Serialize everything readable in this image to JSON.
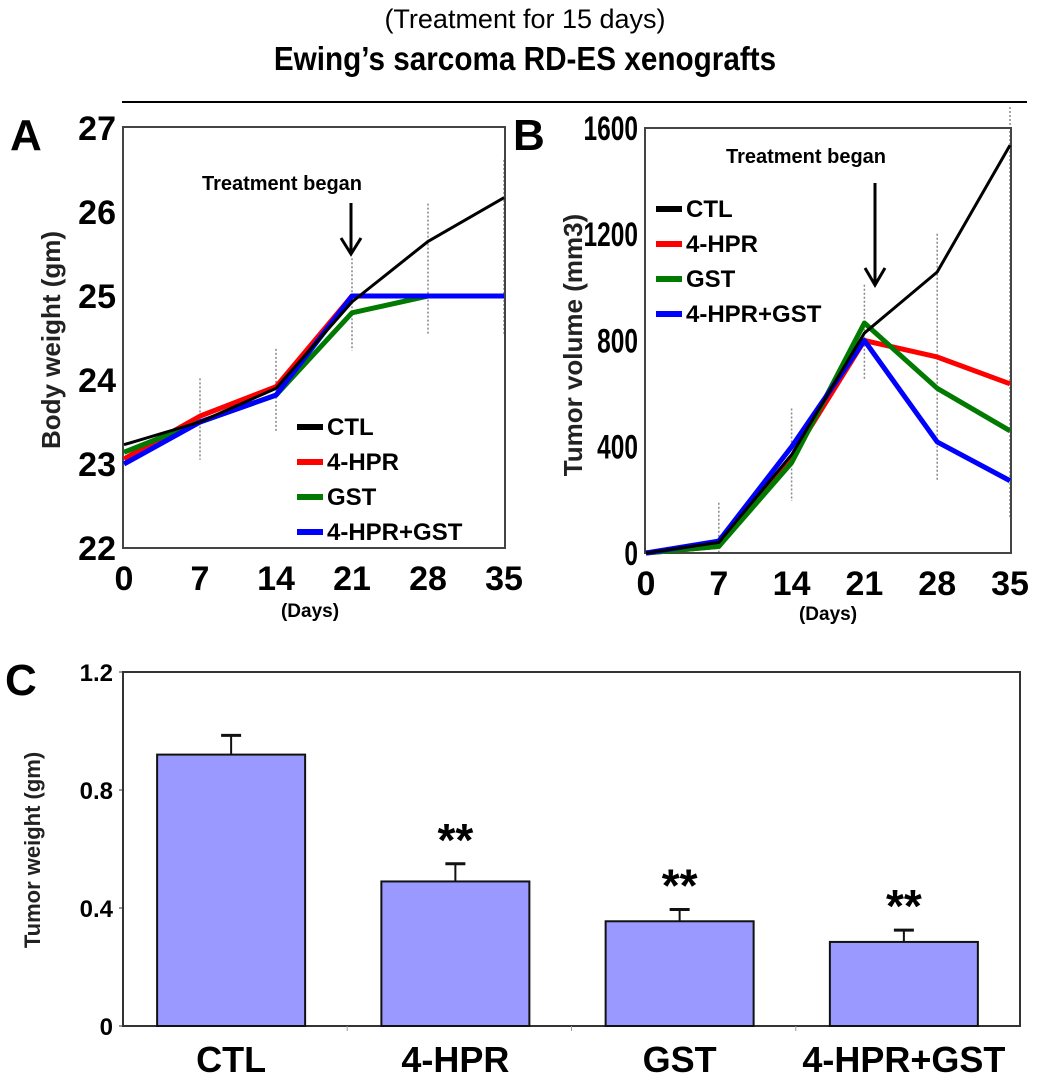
{
  "header": {
    "subtitle": "(Treatment for 15 days)",
    "title": "Ewing’s sarcoma RD-ES xenografts"
  },
  "colors": {
    "CTL": "#000000",
    "4-HPR": "#ff0000",
    "GST": "#007a00",
    "4-HPR+GST": "#0000ff",
    "bar": "#9999ff"
  },
  "chart_data": [
    {
      "panel": "A",
      "type": "line",
      "title": "",
      "xlabel": "(Days)",
      "ylabel": "Body weight (gm)",
      "x": [
        0,
        7,
        14,
        21,
        28,
        35
      ],
      "xticks": [
        "0",
        "7",
        "14",
        "21",
        "28",
        "35"
      ],
      "yticks": [
        "22",
        "23",
        "24",
        "25",
        "26",
        "27"
      ],
      "ylim": [
        22,
        27
      ],
      "xlim": [
        0,
        35
      ],
      "legend_position": "bottom-right",
      "annotation": {
        "text": "Treatment began",
        "x": 21
      },
      "series": [
        {
          "name": "CTL",
          "values": [
            23.23,
            23.5,
            23.9,
            24.93,
            25.65,
            26.17
          ]
        },
        {
          "name": "4-HPR",
          "values": [
            23.06,
            23.57,
            23.92,
            25.0,
            25.0,
            25.0
          ]
        },
        {
          "name": "GST",
          "values": [
            23.14,
            23.5,
            23.82,
            24.8,
            25.0,
            25.0
          ]
        },
        {
          "name": "4-HPR+GST",
          "values": [
            23.0,
            23.5,
            23.82,
            25.0,
            25.0,
            25.0
          ]
        }
      ]
    },
    {
      "panel": "B",
      "type": "line",
      "title": "",
      "xlabel": "(Days)",
      "ylabel": "Tumor volume (mm3)",
      "x": [
        0,
        7,
        14,
        21,
        28,
        35
      ],
      "xticks": [
        "0",
        "7",
        "14",
        "21",
        "28",
        "35"
      ],
      "yticks": [
        "0",
        "400",
        "800",
        "1200",
        "1600"
      ],
      "ylim": [
        0,
        1600
      ],
      "xlim": [
        0,
        35
      ],
      "legend_position": "top-left",
      "annotation": {
        "text": "Treatment began",
        "x": 21
      },
      "series": [
        {
          "name": "CTL",
          "values": [
            0,
            40,
            370,
            828,
            1058,
            1535
          ]
        },
        {
          "name": "4-HPR",
          "values": [
            0,
            25,
            360,
            800,
            738,
            637
          ]
        },
        {
          "name": "GST",
          "values": [
            0,
            25,
            340,
            866,
            620,
            460
          ]
        },
        {
          "name": "4-HPR+GST",
          "values": [
            0,
            45,
            400,
            800,
            418,
            272
          ]
        }
      ]
    },
    {
      "panel": "C",
      "type": "bar",
      "title": "",
      "xlabel": "",
      "ylabel": "Tumor weight (gm)",
      "categories": [
        "CTL",
        "4-HPR",
        "GST",
        "4-HPR+GST"
      ],
      "values": [
        0.92,
        0.49,
        0.355,
        0.285
      ],
      "errors": [
        0.065,
        0.06,
        0.04,
        0.04
      ],
      "significance": [
        "",
        "**",
        "**",
        "**"
      ],
      "yticks": [
        "0",
        "0.4",
        "0.8",
        "1.2"
      ],
      "ylim": [
        0,
        1.2
      ]
    }
  ]
}
